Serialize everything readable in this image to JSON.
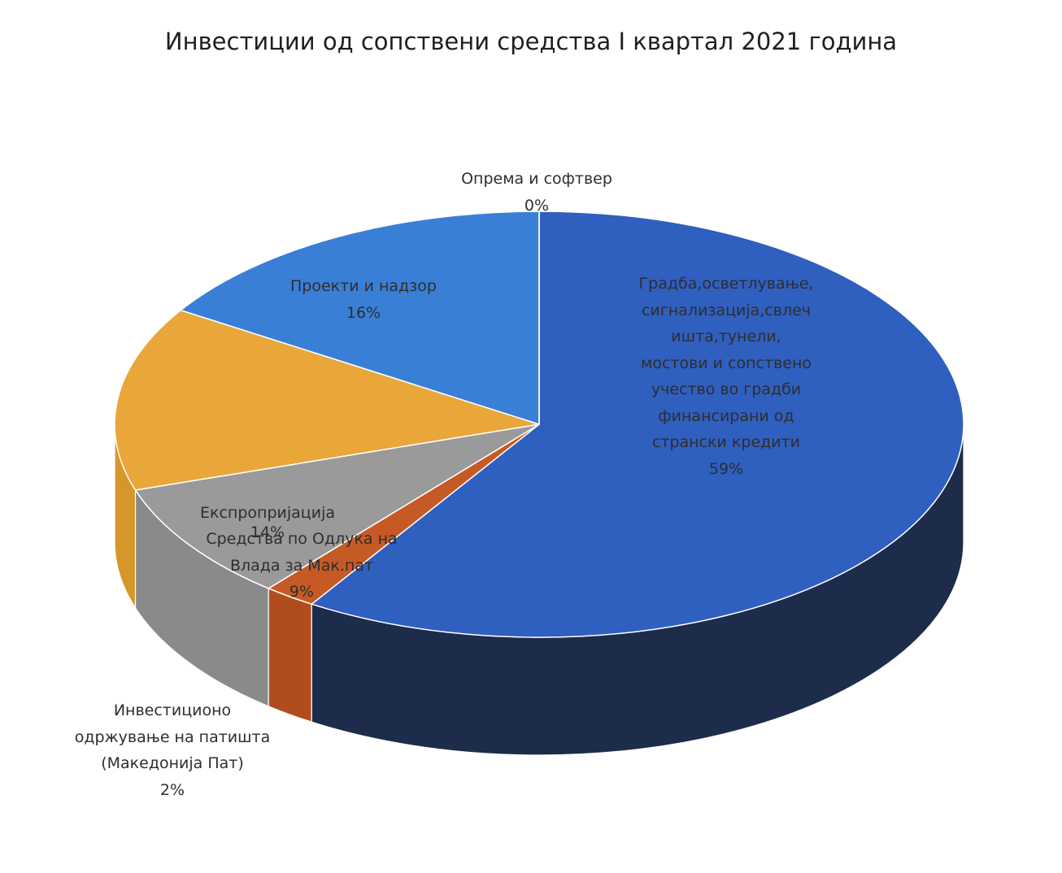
{
  "chart_data": {
    "type": "pie",
    "title": "Инвестиции од сопствени средства I квартал 2021 година",
    "slices": [
      {
        "label": "Градба,осветлување,сигнализација,свлечишта,тунели,мостови и сопствено учество во градби финансирани од странски кредити",
        "label_lines": [
          "Градба,осветлување,",
          "сигнализација,свлеч",
          "ишта,тунели,",
          "мостови и сопствено",
          "учество во градби",
          "финансирани од",
          "странски кредити"
        ],
        "value": 59,
        "percent": "59%",
        "color": "#2f5fbf",
        "side_color": "#1d2c4a"
      },
      {
        "label": "Инвестиционо одржување на патишта (Македонија Пат)",
        "label_lines": [
          "Инвестиционо",
          "одржување на патишта",
          "(Македонија Пат)"
        ],
        "value": 2,
        "percent": "2%",
        "color": "#c65a25",
        "side_color": "#b04d1d"
      },
      {
        "label": "Средства по Одлука на Влада за Мак.пат",
        "label_lines": [
          "Средства по Одлука на",
          "Влада за Мак.пат"
        ],
        "value": 9,
        "percent": "9%",
        "color": "#9a9a9a",
        "side_color": "#8a8a8a"
      },
      {
        "label": "Експропријација",
        "label_lines": [
          "Експропријација"
        ],
        "value": 14,
        "percent": "14%",
        "color": "#e9a73a",
        "side_color": "#d7962a"
      },
      {
        "label": "Проекти и надзор",
        "label_lines": [
          "Проекти и надзор"
        ],
        "value": 16,
        "percent": "16%",
        "color": "#3a7fd6",
        "side_color": "#2f6ab5"
      },
      {
        "label": "Опрема и софтвер",
        "label_lines": [
          "Опрема и софтвер"
        ],
        "value": 0,
        "percent": "0%",
        "color": "#4a86d6",
        "side_color": "#3a70b8"
      }
    ],
    "legend": "none"
  }
}
